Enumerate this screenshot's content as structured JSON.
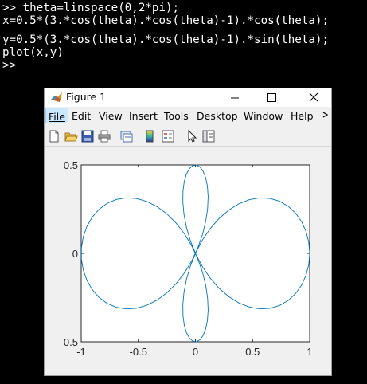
{
  "console": {
    "lines": [
      ">> theta=linspace(0,2*pi);",
      "x=0.5*(3.*cos(theta).*cos(theta)-1).*cos(theta);",
      "",
      "y=0.5*(3.*cos(theta).*cos(theta)-1).*sin(theta);",
      "plot(x,y)",
      ">>"
    ]
  },
  "figure": {
    "title": "Figure 1",
    "menu": [
      "File",
      "Edit",
      "View",
      "Insert",
      "Tools",
      "Desktop",
      "Window",
      "Help"
    ],
    "menu_overflow_icon": "chevron-right-icon",
    "toolbar_icons": [
      "new-figure-icon",
      "open-file-icon",
      "save-icon",
      "print-icon",
      "link-plot-icon",
      "colorbar-icon",
      "legend-icon",
      "edit-plot-arrow-icon",
      "property-inspector-icon"
    ]
  },
  "colors": {
    "console_bg": "#000000",
    "console_text": "#ffffff",
    "line": "#0072bd",
    "menu_highlight": "#cce8ff"
  },
  "chart_data": {
    "type": "line",
    "function": "x=0.5*(3*cos(t)^2-1)*cos(t), y=0.5*(3*cos(t)^2-1)*sin(t), t in [0,2pi]",
    "series": [
      {
        "points": 100
      }
    ],
    "xlim": [
      -1,
      1
    ],
    "ylim": [
      -0.5,
      0.5
    ],
    "xticks": [
      "-1",
      "-0.5",
      "0",
      "0.5",
      "1"
    ],
    "yticks": [
      "0.5",
      "0",
      "-0.5"
    ],
    "grid": false
  }
}
